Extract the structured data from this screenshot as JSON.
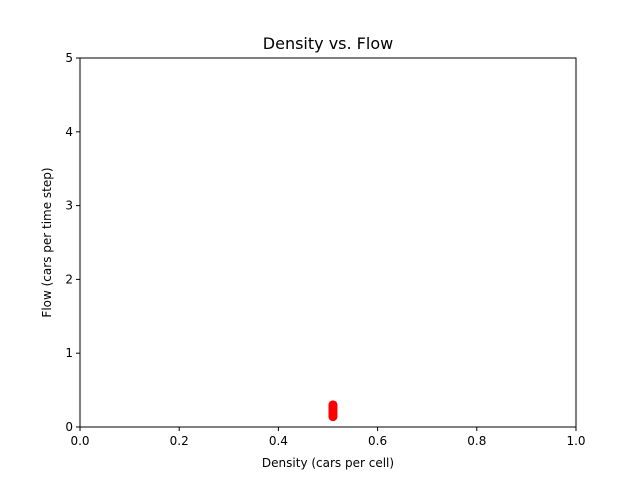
{
  "chart_data": {
    "type": "scatter",
    "title": "Density vs. Flow",
    "xlabel": "Density (cars per cell)",
    "ylabel": "Flow (cars per time step)",
    "xlim": [
      0.0,
      1.0
    ],
    "ylim": [
      0,
      5
    ],
    "x_ticks": [
      "0.0",
      "0.2",
      "0.4",
      "0.6",
      "0.8",
      "1.0"
    ],
    "y_ticks": [
      "0",
      "1",
      "2",
      "3",
      "4",
      "5"
    ],
    "grid": false,
    "legend": "none",
    "series": [
      {
        "color": "#ff0000",
        "points": [
          {
            "x": 0.51,
            "y": 0.14
          },
          {
            "x": 0.51,
            "y": 0.16
          },
          {
            "x": 0.51,
            "y": 0.18
          },
          {
            "x": 0.51,
            "y": 0.2
          },
          {
            "x": 0.51,
            "y": 0.22
          },
          {
            "x": 0.51,
            "y": 0.24
          },
          {
            "x": 0.51,
            "y": 0.26
          },
          {
            "x": 0.51,
            "y": 0.28
          },
          {
            "x": 0.51,
            "y": 0.3
          }
        ]
      }
    ]
  }
}
